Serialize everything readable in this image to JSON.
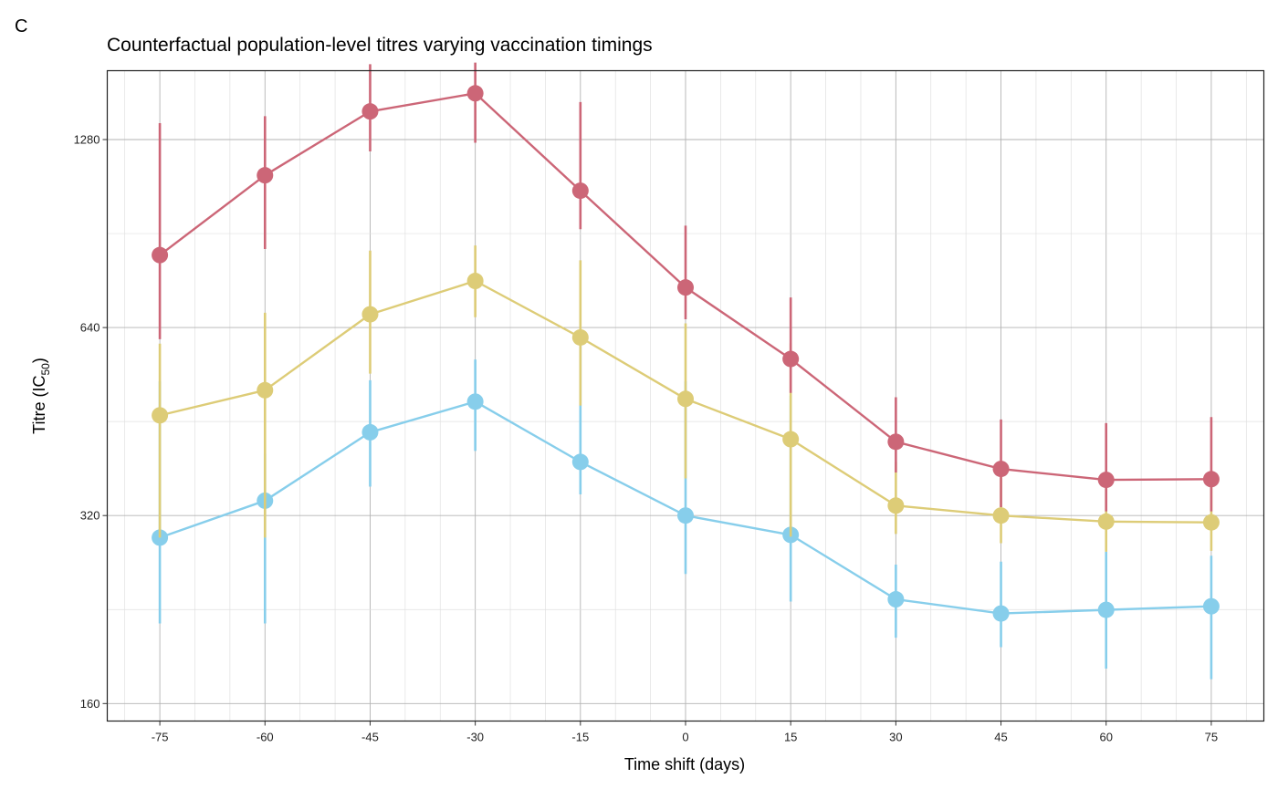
{
  "panel_label": "C",
  "chart_data": {
    "type": "line",
    "title": "Counterfactual population-level titres varying vaccination timings",
    "xlabel": "Time shift (days)",
    "ylabel_main": "Titre (IC",
    "ylabel_sub": "50",
    "ylabel_close": ")",
    "y_scale": "log2",
    "ylim": [
      150,
      1650
    ],
    "xlim": [
      -82.5,
      82.5
    ],
    "x": [
      -75,
      -60,
      -45,
      -30,
      -15,
      0,
      15,
      30,
      45,
      60,
      75
    ],
    "x_tick_labels": [
      "-75",
      "-60",
      "-45",
      "-30",
      "-15",
      "0",
      "15",
      "30",
      "45",
      "60",
      "75"
    ],
    "y_ticks": [
      160,
      320,
      640,
      1280
    ],
    "y_tick_labels": [
      "160",
      "320",
      "640",
      "1280"
    ],
    "grid": true,
    "legend": "none",
    "series": [
      {
        "color": "#87ceeb",
        "values": [
          295,
          338,
          435,
          487,
          390,
          320,
          298,
          235,
          223,
          226,
          229
        ],
        "lower": [
          215,
          215,
          356,
          406,
          346,
          258,
          233,
          204,
          197,
          182,
          175
        ],
        "upper": [
          525,
          402,
          527,
          569,
          630,
          525,
          498,
          267,
          270,
          280,
          276
        ]
      },
      {
        "color": "#ddcc77",
        "values": [
          463,
          508,
          672,
          760,
          617,
          492,
          424,
          332,
          320,
          313,
          312
        ],
        "lower": [
          295,
          295,
          540,
          665,
          480,
          367,
          296,
          299,
          289,
          280,
          281
        ],
        "upper": [
          603,
          676,
          850,
          866,
          820,
          650,
          604,
          390,
          376,
          368,
          370
        ]
      },
      {
        "color": "#cc6677",
        "values": [
          836,
          1122,
          1420,
          1518,
          1060,
          742,
          570,
          420,
          380,
          365,
          366
        ],
        "lower": [
          613,
          855,
          1225,
          1265,
          920,
          660,
          503,
          375,
          330,
          325,
          325
        ],
        "upper": [
          1360,
          1395,
          1690,
          1700,
          1470,
          932,
          715,
          495,
          456,
          450,
          460
        ]
      }
    ]
  }
}
